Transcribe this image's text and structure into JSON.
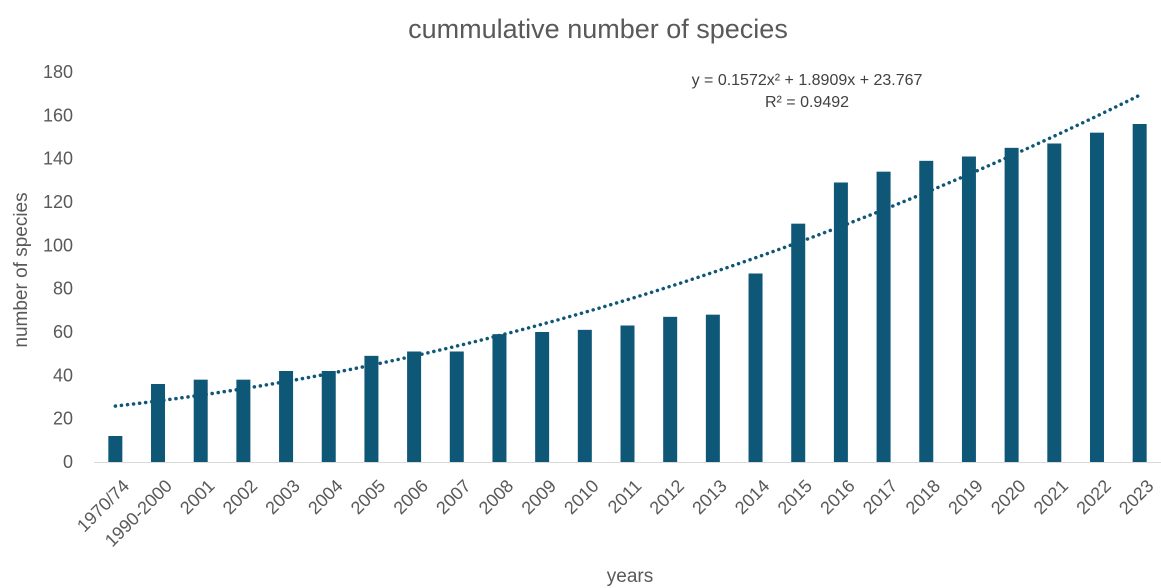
{
  "chart_data": {
    "type": "bar",
    "title": "cummulative number of species",
    "xlabel": "years",
    "ylabel": "number of species",
    "ylim": [
      0,
      180
    ],
    "yticks": [
      0,
      20,
      40,
      60,
      80,
      100,
      120,
      140,
      160,
      180
    ],
    "grid": false,
    "legend": "none",
    "categories": [
      "1970/74",
      "1990-2000",
      "2001",
      "2002",
      "2003",
      "2004",
      "2005",
      "2006",
      "2007",
      "2008",
      "2009",
      "2010",
      "2011",
      "2012",
      "2013",
      "2014",
      "2015",
      "2016",
      "2017",
      "2018",
      "2019",
      "2020",
      "2021",
      "2022",
      "2023"
    ],
    "series": [
      {
        "values": [
          12,
          36,
          38,
          38,
          42,
          42,
          49,
          51,
          51,
          59,
          60,
          61,
          63,
          67,
          68,
          87,
          110,
          129,
          134,
          139,
          141,
          145,
          147,
          152,
          156
        ]
      }
    ],
    "trendline": {
      "type": "polynomial",
      "coefficients": [
        0.1572,
        1.8909,
        23.767
      ],
      "equation": "y = 0.1572x² + 1.8909x + 23.767",
      "r_squared": "R² = 0.9492"
    },
    "colors": {
      "bar": "#0f5777",
      "trend": "#0f5777",
      "axis": "#d9d9d9"
    }
  }
}
